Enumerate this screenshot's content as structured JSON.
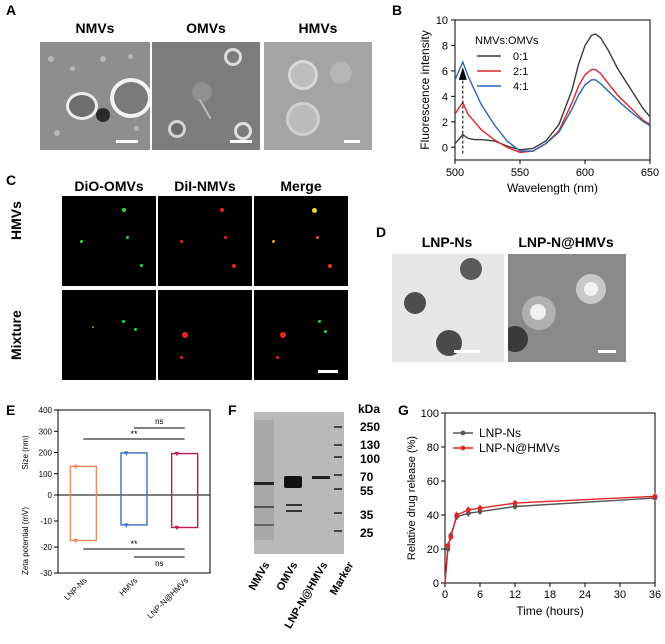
{
  "panels": {
    "A": {
      "label": "A",
      "titles": [
        "NMVs",
        "OMVs",
        "HMVs"
      ]
    },
    "B": {
      "label": "B",
      "legend_title": "NMVs:OMVs",
      "legend_items": [
        "0:1",
        "2:1",
        "4:1"
      ]
    },
    "C": {
      "label": "C",
      "col_titles": [
        "DiO-OMVs",
        "DiI-NMVs",
        "Merge"
      ],
      "row_titles": [
        "HMVs",
        "Mixture"
      ]
    },
    "D": {
      "label": "D",
      "titles": [
        "LNP-Ns",
        "LNP-N@HMVs"
      ]
    },
    "E": {
      "label": "E",
      "annotations": [
        "ns",
        "**",
        "**",
        "ns"
      ]
    },
    "F": {
      "label": "F",
      "kda_label": "kDa",
      "markers": [
        "250",
        "130",
        "100",
        "70",
        "55",
        "35",
        "25"
      ],
      "lanes": [
        "NMVs",
        "OMVs",
        "LNP-N@HMVs",
        "Marker"
      ]
    },
    "G": {
      "label": "G",
      "legend_items": [
        "LNP-Ns",
        "LNP-N@HMVs"
      ]
    }
  },
  "colors": {
    "black": "#3a3a3a",
    "red": "#e0242c",
    "blue": "#2a63b8",
    "orange": "#f08a5d",
    "blue_bar": "#3a6fc4",
    "pink": "#c2185b",
    "green_fluo": "#22dd33",
    "red_fluo": "#ee2222"
  },
  "chart_data": [
    {
      "id": "B",
      "type": "line",
      "title": "",
      "xlabel": "Wavelength (nm)",
      "ylabel": "Fluorescence intensity",
      "xlim": [
        500,
        650
      ],
      "ylim": [
        -1,
        10
      ],
      "xticks": [
        500,
        550,
        600,
        650
      ],
      "yticks": [
        0,
        2,
        4,
        6,
        8,
        10
      ],
      "legend_title": "NMVs:OMVs",
      "series": [
        {
          "name": "0:1",
          "color": "#3a3a3a",
          "x": [
            500,
            503,
            506,
            510,
            515,
            520,
            530,
            540,
            550,
            560,
            570,
            580,
            590,
            595,
            600,
            605,
            608,
            612,
            618,
            625,
            635,
            645,
            650
          ],
          "y": [
            0.3,
            0.6,
            1.0,
            0.7,
            0.6,
            0.6,
            0.5,
            0.1,
            -0.2,
            -0.1,
            0.5,
            1.8,
            4.5,
            6.5,
            8.0,
            8.8,
            8.9,
            8.6,
            7.6,
            6.2,
            4.6,
            3.0,
            2.4
          ]
        },
        {
          "name": "2:1",
          "color": "#e0242c",
          "x": [
            500,
            503,
            506,
            510,
            515,
            520,
            530,
            540,
            550,
            560,
            570,
            580,
            590,
            595,
            600,
            605,
            608,
            612,
            618,
            625,
            635,
            645,
            650
          ],
          "y": [
            2.6,
            3.1,
            3.5,
            2.6,
            2.0,
            1.4,
            0.6,
            0.0,
            -0.4,
            -0.3,
            0.3,
            1.3,
            3.5,
            4.8,
            5.7,
            6.1,
            6.1,
            5.8,
            5.0,
            4.1,
            3.1,
            2.1,
            1.8
          ]
        },
        {
          "name": "4:1",
          "color": "#2a63b8",
          "x": [
            500,
            503,
            506,
            510,
            515,
            520,
            530,
            540,
            550,
            560,
            570,
            580,
            590,
            595,
            600,
            605,
            608,
            612,
            618,
            625,
            635,
            645,
            650
          ],
          "y": [
            5.3,
            6.0,
            6.7,
            5.6,
            4.5,
            3.4,
            1.8,
            0.5,
            -0.3,
            -0.3,
            0.3,
            1.2,
            3.0,
            4.1,
            4.9,
            5.3,
            5.3,
            5.0,
            4.4,
            3.7,
            2.8,
            2.0,
            1.7
          ]
        }
      ],
      "annotations": [
        "arrow up at ~506 nm"
      ]
    },
    {
      "id": "E",
      "type": "bar",
      "title": "",
      "categories": [
        "LNP-Ns",
        "HMVs",
        "LNP-N@HMVs"
      ],
      "ylabel_top": "Size (nm)",
      "ylabel_bottom": "Zeta potential (mV)",
      "ylim": [
        -30,
        400
      ],
      "yticks_top": [
        0,
        100,
        200,
        300,
        400
      ],
      "yticks_bottom": [
        -30,
        -20,
        -10,
        0
      ],
      "series": [
        {
          "name": "Size",
          "values": [
            135,
            198,
            195
          ]
        },
        {
          "name": "Zeta potential",
          "values": [
            -17.5,
            -11.5,
            -12.5
          ]
        }
      ],
      "colors": [
        "#f08a5d",
        "#3a6fc4",
        "#c2185b"
      ]
    },
    {
      "id": "G",
      "type": "line",
      "title": "",
      "xlabel": "Time (hours)",
      "ylabel": "Relative drug release (%)",
      "xlim": [
        0,
        36
      ],
      "ylim": [
        0,
        100
      ],
      "xticks": [
        0,
        6,
        12,
        18,
        24,
        30,
        36
      ],
      "yticks": [
        0,
        20,
        40,
        60,
        80,
        100
      ],
      "series": [
        {
          "name": "LNP-Ns",
          "color": "#555555",
          "x": [
            0,
            0.5,
            1,
            2,
            4,
            6,
            12,
            36
          ],
          "y": [
            0,
            20,
            28,
            39,
            41,
            42,
            45,
            50
          ]
        },
        {
          "name": "LNP-N@HMVs",
          "color": "#e0242c",
          "x": [
            0,
            0.5,
            1,
            2,
            4,
            6,
            12,
            36
          ],
          "y": [
            0,
            22,
            27,
            40,
            43,
            44,
            47,
            51
          ]
        }
      ]
    }
  ]
}
